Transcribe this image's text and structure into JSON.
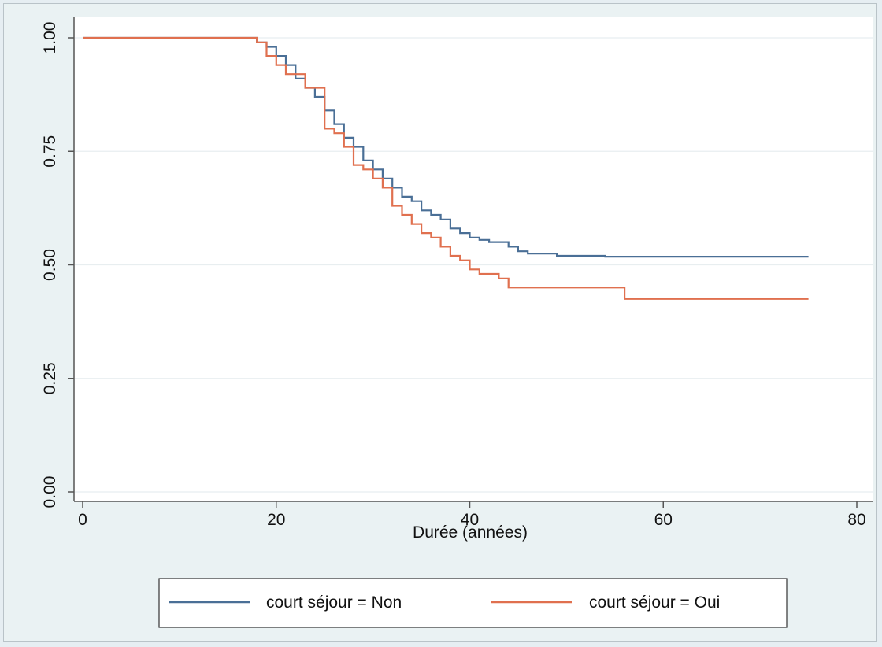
{
  "chart_data": {
    "type": "line",
    "step": true,
    "xlabel": "Durée (années)",
    "ylabel": "",
    "xlim": [
      0,
      80
    ],
    "ylim": [
      0,
      1
    ],
    "xticks": [
      "0",
      "20",
      "40",
      "60",
      "80"
    ],
    "yticks": [
      "0.00",
      "0.25",
      "0.50",
      "0.75",
      "1.00"
    ],
    "grid": true,
    "legend_position": "bottom",
    "series": [
      {
        "name": "court séjour = Non",
        "color": "#4a6f96",
        "x": [
          0,
          18,
          19,
          20,
          21,
          22,
          23,
          24,
          25,
          26,
          27,
          28,
          29,
          30,
          31,
          32,
          33,
          34,
          35,
          36,
          37,
          38,
          39,
          40,
          41,
          42,
          44,
          45,
          46,
          49,
          54,
          75
        ],
        "y": [
          1.0,
          0.99,
          0.98,
          0.96,
          0.94,
          0.91,
          0.89,
          0.87,
          0.84,
          0.81,
          0.78,
          0.76,
          0.73,
          0.71,
          0.69,
          0.67,
          0.65,
          0.64,
          0.62,
          0.61,
          0.6,
          0.58,
          0.57,
          0.56,
          0.555,
          0.55,
          0.54,
          0.53,
          0.525,
          0.52,
          0.518,
          0.518
        ]
      },
      {
        "name": "court séjour = Oui",
        "color": "#e0704f",
        "x": [
          0,
          18,
          19,
          20,
          21,
          23,
          25,
          26,
          27,
          28,
          29,
          30,
          31,
          32,
          33,
          34,
          35,
          36,
          37,
          38,
          39,
          40,
          41,
          43,
          44,
          56,
          75
        ],
        "y": [
          1.0,
          0.99,
          0.96,
          0.94,
          0.92,
          0.89,
          0.8,
          0.79,
          0.76,
          0.72,
          0.71,
          0.69,
          0.67,
          0.63,
          0.61,
          0.59,
          0.57,
          0.56,
          0.54,
          0.52,
          0.51,
          0.49,
          0.48,
          0.47,
          0.45,
          0.425,
          0.425
        ]
      }
    ]
  }
}
